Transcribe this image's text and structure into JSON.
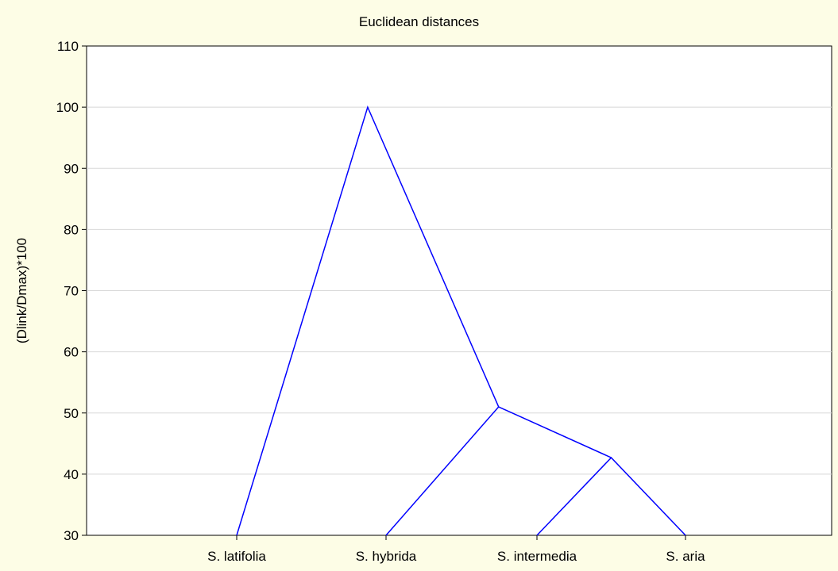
{
  "chart_data": {
    "type": "dendrogram",
    "title": "Euclidean distances",
    "xlabel": "",
    "ylabel": "(Dlink/Dmax)*100",
    "ylim": [
      30,
      110
    ],
    "yticks": [
      30,
      40,
      50,
      60,
      70,
      80,
      90,
      100,
      110
    ],
    "grid": true,
    "leaves": [
      "S. latifolia",
      "S. hybrida",
      "S. intermedia",
      "S. aria"
    ],
    "links": [
      {
        "left": "S. intermedia",
        "right": "S. aria",
        "height": 42.7
      },
      {
        "left": "S. hybrida",
        "right": "S. intermedia + S. aria",
        "height": 51.0
      },
      {
        "left": "S. latifolia",
        "right": "S. hybrida + S. intermedia + S. aria",
        "height": 100
      }
    ],
    "colors": {
      "line": "#0000ff",
      "background": "#fdfde6",
      "plot_background": "#ffffff",
      "grid": "#d8d8d8"
    }
  }
}
